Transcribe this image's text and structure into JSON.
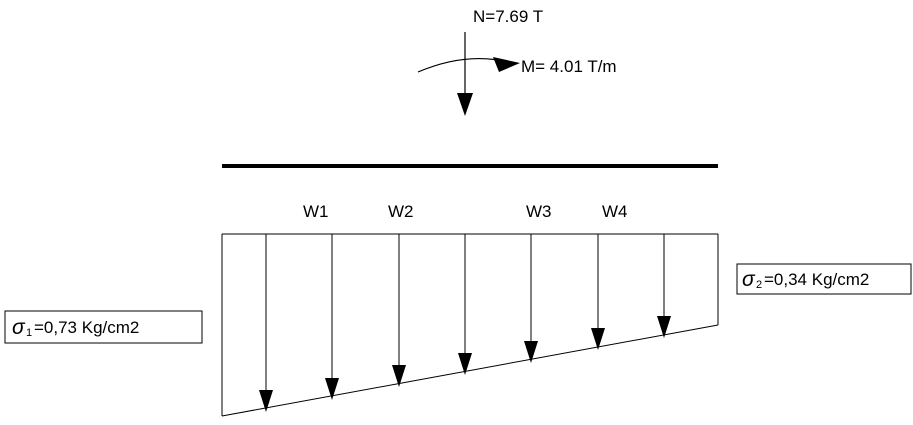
{
  "loads": {
    "axial": "N=7.69 T",
    "moment": "M= 4.01 T/m"
  },
  "weights": [
    "W1",
    "W2",
    "W3",
    "W4"
  ],
  "stresses": {
    "left": {
      "symbol": "σ",
      "subscript": "1",
      "value": "=0,73 Kg/cm2"
    },
    "right": {
      "symbol": "σ",
      "subscript": "2",
      "value": "=0,34 Kg/cm2"
    }
  },
  "colors": {
    "line": "#000000",
    "background": "#ffffff"
  }
}
